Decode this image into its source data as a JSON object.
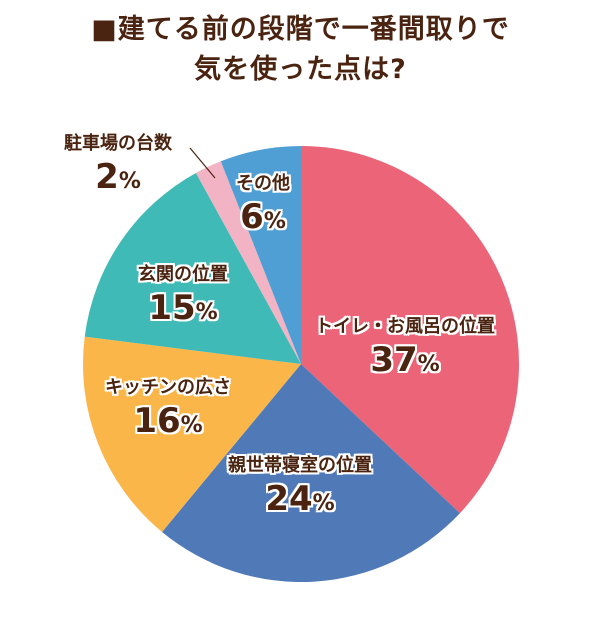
{
  "title": {
    "line1": "■建てる前の段階で一番間取りで",
    "line2": "気を使った点は?"
  },
  "labels": [
    {
      "name": "トイレ・お風呂の位置",
      "value": "37",
      "unit": "%"
    },
    {
      "name": "親世帯寝室の位置",
      "value": "24",
      "unit": "%"
    },
    {
      "name": "キッチンの広さ",
      "value": "16",
      "unit": "%"
    },
    {
      "name": "玄関の位置",
      "value": "15",
      "unit": "%"
    },
    {
      "name": "駐車場の台数",
      "value": "2",
      "unit": "%"
    },
    {
      "name": "その他",
      "value": "6",
      "unit": "%"
    }
  ],
  "chart_data": {
    "type": "pie",
    "title": "■建てる前の段階で一番間取りで気を使った点は?",
    "categories": [
      "トイレ・お風呂の位置",
      "親世帯寝室の位置",
      "キッチンの広さ",
      "玄関の位置",
      "駐車場の台数",
      "その他"
    ],
    "values": [
      37,
      24,
      16,
      15,
      2,
      6
    ],
    "unit": "%",
    "colors": [
      "#ec6478",
      "#5079b8",
      "#fbb64a",
      "#3fbab6",
      "#f2b4c4",
      "#4f9fd5"
    ],
    "start_angle": "12 o'clock, clockwise",
    "legend": "none (labels on slices)"
  }
}
